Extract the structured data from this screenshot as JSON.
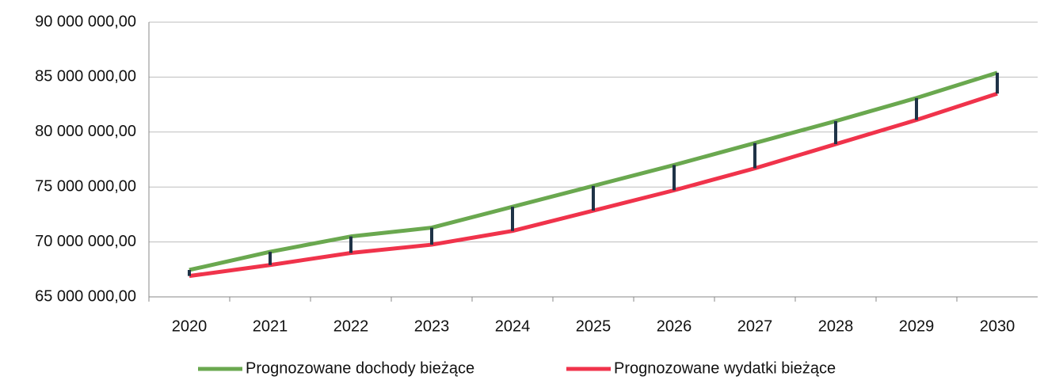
{
  "chart_data": {
    "type": "line",
    "categories": [
      "2020",
      "2021",
      "2022",
      "2023",
      "2024",
      "2025",
      "2026",
      "2027",
      "2028",
      "2029",
      "2030"
    ],
    "series": [
      {
        "name": "Prognozowane dochody bieżące",
        "color": "#6aa84f",
        "values": [
          67450000,
          69100000,
          70500000,
          71300000,
          73200000,
          75100000,
          77000000,
          79000000,
          81000000,
          83100000,
          85400000
        ]
      },
      {
        "name": "Prognozowane wydatki bieżące",
        "color": "#f0334b",
        "values": [
          66900000,
          67900000,
          69000000,
          69750000,
          71000000,
          72850000,
          74700000,
          76700000,
          78900000,
          81100000,
          83500000
        ]
      }
    ],
    "high_low_lines": true,
    "high_low_color": "#1f3347",
    "ylim": [
      65000000,
      90000000
    ],
    "yticks": [
      {
        "value": 65000000,
        "label": "65 000 000,00"
      },
      {
        "value": 70000000,
        "label": "70 000 000,00"
      },
      {
        "value": 75000000,
        "label": "75 000 000,00"
      },
      {
        "value": 80000000,
        "label": "80 000 000,00"
      },
      {
        "value": 85000000,
        "label": "85 000 000,00"
      },
      {
        "value": 90000000,
        "label": "90 000 000,00"
      }
    ],
    "grid": true,
    "legend": "bottom"
  }
}
